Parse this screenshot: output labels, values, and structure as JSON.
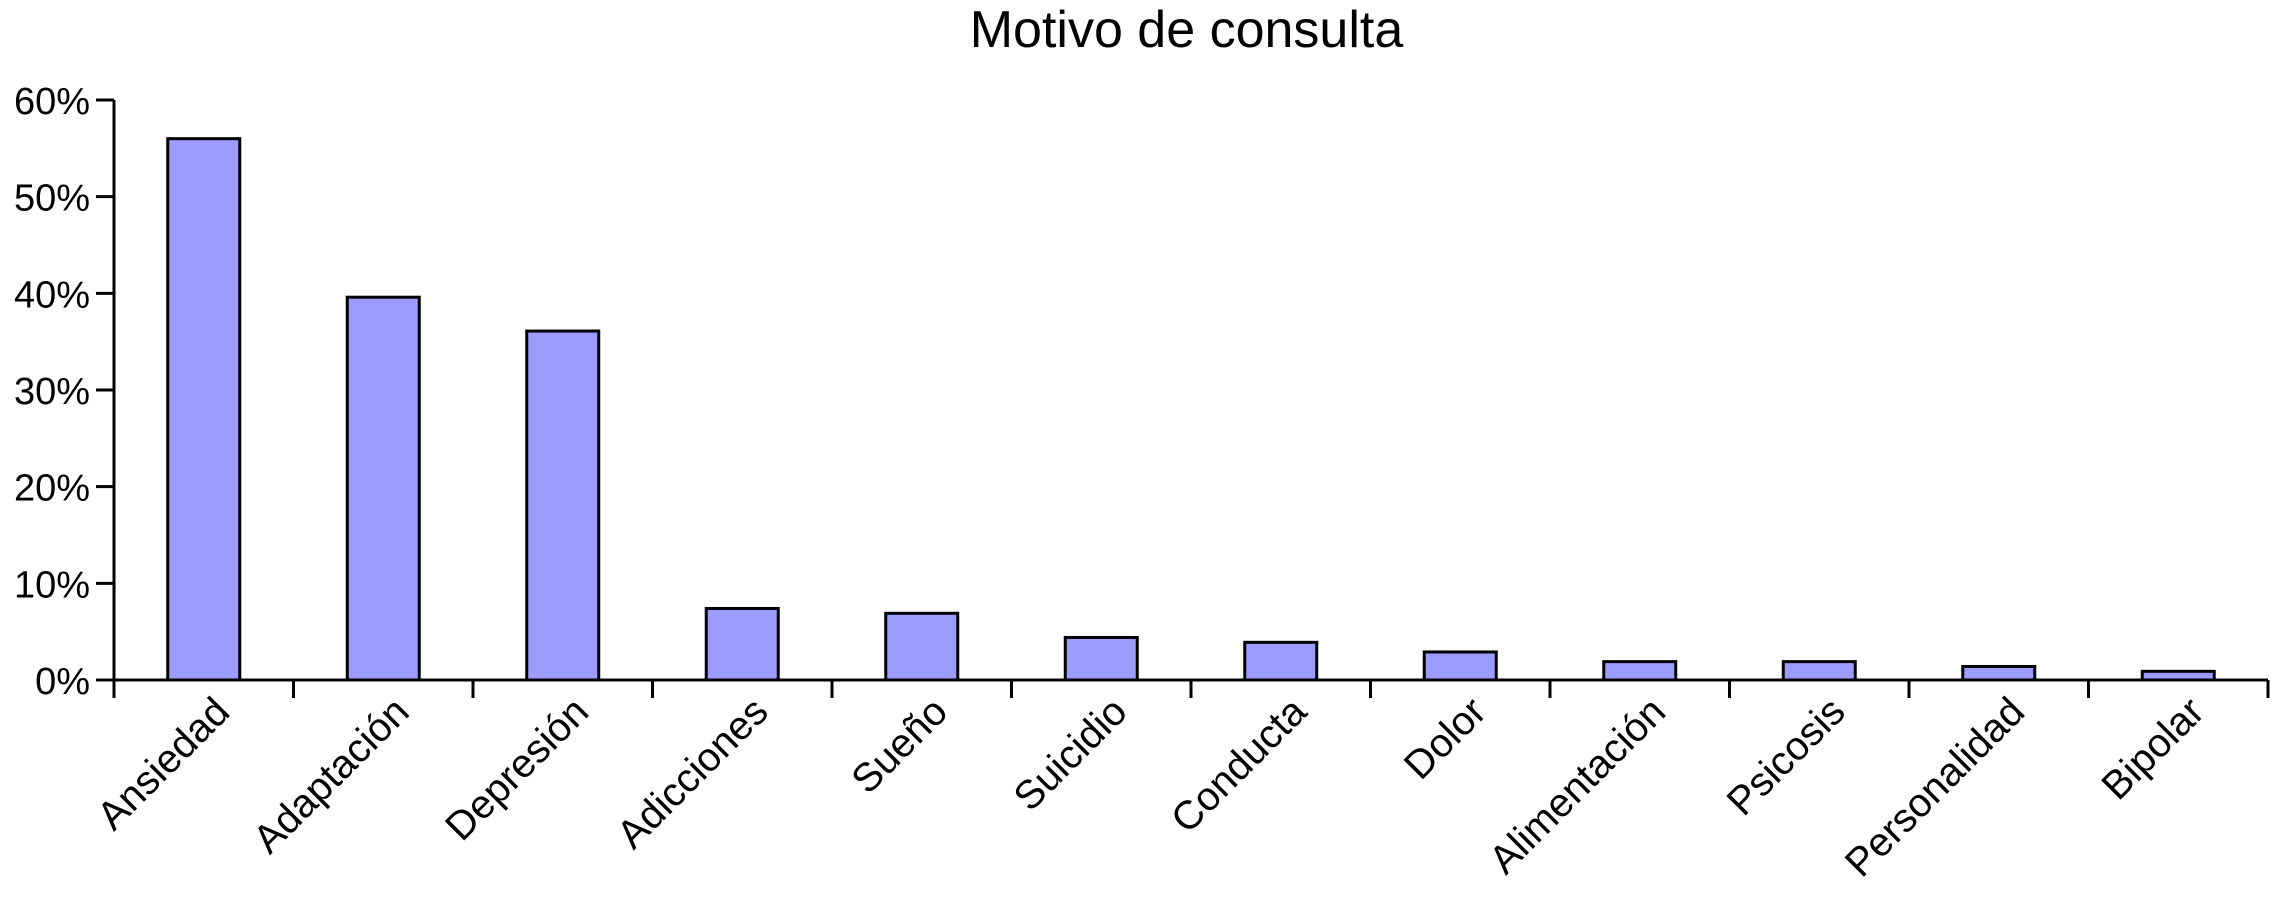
{
  "chart_data": {
    "type": "bar",
    "title": "Motivo de consulta",
    "xlabel": "",
    "ylabel": "",
    "categories": [
      "Ansiedad",
      "Adaptación",
      "Depresión",
      "Adicciones",
      "Sueño",
      "Suicidio",
      "Conducta",
      "Dolor",
      "Alimentación",
      "Psicosis",
      "Personalidad",
      "Bipolar"
    ],
    "values": [
      56,
      39.6,
      36.1,
      7.4,
      6.9,
      4.4,
      3.9,
      2.9,
      1.9,
      1.9,
      1.4,
      0.9
    ],
    "ylim": [
      0,
      60
    ],
    "yticks": [
      0,
      10,
      20,
      30,
      40,
      50,
      60
    ],
    "ytick_labels": [
      "0%",
      "10%",
      "20%",
      "30%",
      "40%",
      "50%",
      "60%"
    ],
    "grid": false,
    "legend": "none",
    "colors": {
      "bar_fill": "#9c9cff",
      "bar_stroke": "#000000",
      "axis": "#000000"
    }
  }
}
